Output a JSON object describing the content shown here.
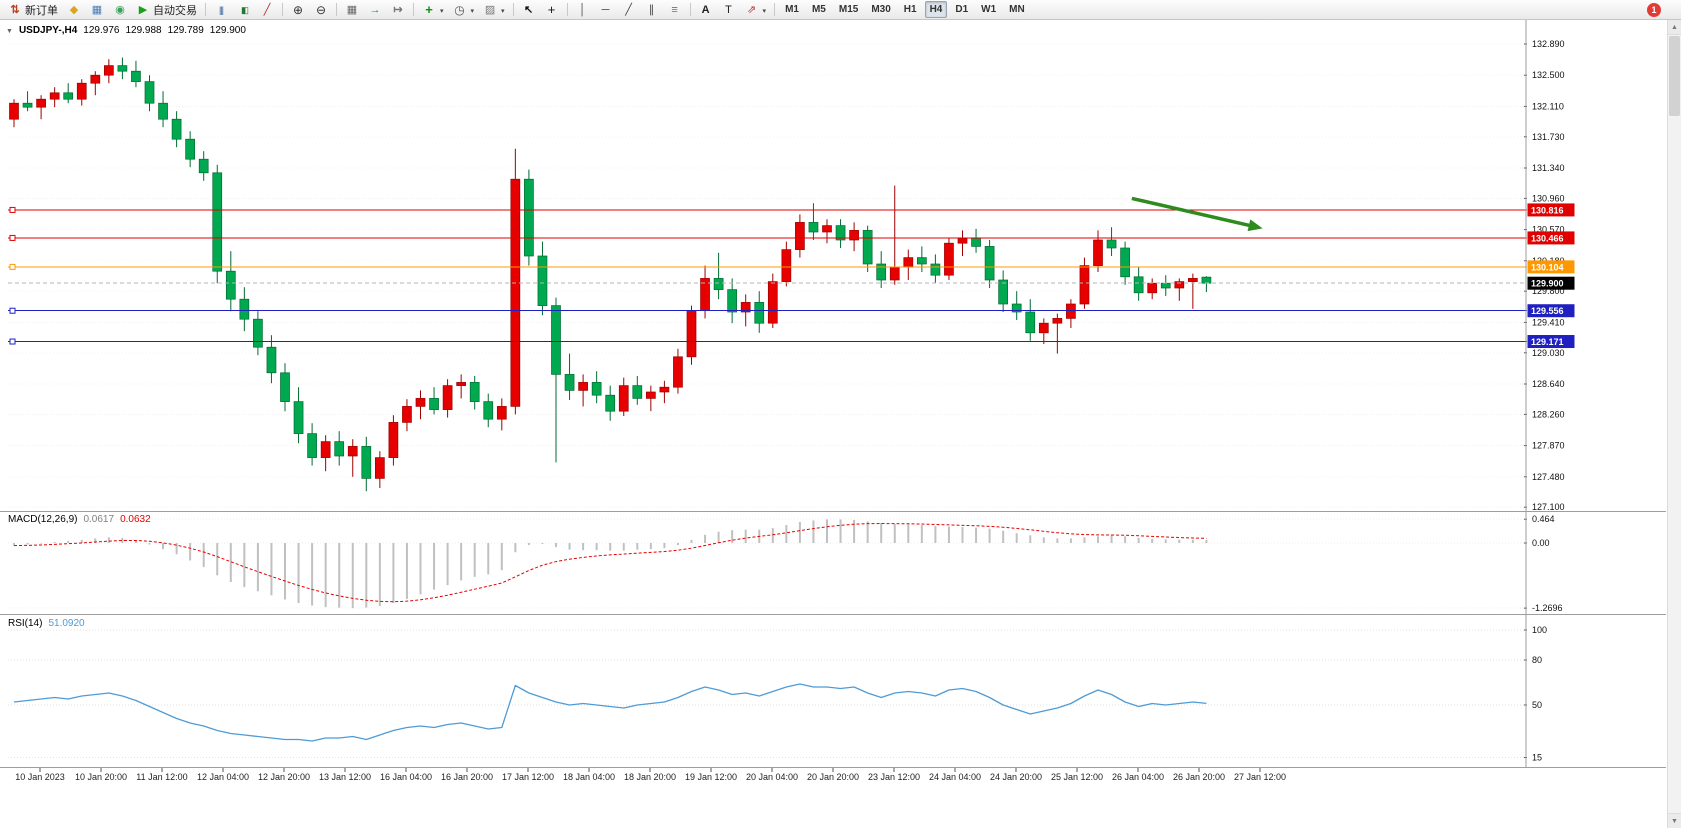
{
  "toolbar": {
    "items": [
      {
        "name": "new-order-button",
        "icon": "new-order",
        "label": "新订单"
      },
      {
        "name": "profiles-button",
        "icon": "profiles"
      },
      {
        "name": "data-window-button",
        "icon": "data-window"
      },
      {
        "name": "refresh-button",
        "icon": "refresh"
      },
      {
        "name": "autotrading-button",
        "icon": "autotrading",
        "label": "自动交易"
      },
      {
        "sep": 1
      },
      {
        "name": "bar-chart-button",
        "icon": "bar-chart"
      },
      {
        "name": "candlestick-chart-button",
        "icon": "candles"
      },
      {
        "name": "line-chart-button",
        "icon": "line-chart"
      },
      {
        "sep": 1
      },
      {
        "name": "zoom-in-button",
        "icon": "zoom-in"
      },
      {
        "name": "zoom-out-button",
        "icon": "zoom-out"
      },
      {
        "sep": 1
      },
      {
        "name": "tile-windows-button",
        "icon": "tile"
      },
      {
        "name": "auto-scroll-button",
        "icon": "autoscroll"
      },
      {
        "name": "chart-shift-button",
        "icon": "shift"
      },
      {
        "sep": 1
      },
      {
        "name": "indicators-button",
        "icon": "indicators",
        "caret": 1
      },
      {
        "name": "periods-button",
        "icon": "periods",
        "caret": 1
      },
      {
        "name": "templates-button",
        "icon": "template",
        "caret": 1
      },
      {
        "sep": 1
      },
      {
        "name": "cursor-button",
        "icon": "cursor"
      },
      {
        "name": "crosshair-button",
        "icon": "crosshair"
      },
      {
        "sep": 1
      },
      {
        "name": "vertical-line-button",
        "icon": "vline"
      },
      {
        "name": "horizontal-line-button",
        "icon": "hline"
      },
      {
        "name": "trendline-button",
        "icon": "trend"
      },
      {
        "name": "channel-button",
        "icon": "channel"
      },
      {
        "name": "fibonacci-button",
        "icon": "fibo"
      },
      {
        "sep": 1
      },
      {
        "name": "text-button",
        "icon": "text"
      },
      {
        "name": "text-label-button",
        "icon": "label"
      },
      {
        "name": "arrows-button",
        "icon": "arrows",
        "caret": 1
      },
      {
        "sep": 1
      }
    ],
    "timeframes": [
      "M1",
      "M5",
      "M15",
      "M30",
      "H1",
      "H4",
      "D1",
      "W1",
      "MN"
    ],
    "active_timeframe": "H4",
    "notification_count": "1"
  },
  "chart": {
    "title": {
      "symbol": "USDJPY-,H4",
      "open": "129.976",
      "high": "129.988",
      "low": "129.789",
      "close": "129.900"
    },
    "price_axis_labels": [
      "132.890",
      "132.500",
      "132.110",
      "131.730",
      "131.340",
      "130.960",
      "130.570",
      "130.180",
      "129.800",
      "129.410",
      "129.030",
      "128.640",
      "128.260",
      "127.870",
      "127.480",
      "127.100"
    ],
    "date_labels": [
      "10 Jan 2023",
      "10 Jan 20:00",
      "11 Jan 12:00",
      "12 Jan 04:00",
      "12 Jan 20:00",
      "13 Jan 12:00",
      "16 Jan 04:00",
      "16 Jan 20:00",
      "17 Jan 12:00",
      "18 Jan 04:00",
      "18 Jan 20:00",
      "19 Jan 12:00",
      "20 Jan 04:00",
      "20 Jan 20:00",
      "23 Jan 12:00",
      "24 Jan 04:00",
      "24 Jan 20:00",
      "25 Jan 12:00",
      "26 Jan 04:00",
      "26 Jan 20:00",
      "27 Jan 12:00"
    ],
    "levels": [
      {
        "label": "130.816",
        "price": 130.816,
        "color": "#e00000",
        "kind": "line"
      },
      {
        "label": "130.466",
        "price": 130.466,
        "color": "#e00000",
        "kind": "line"
      },
      {
        "label": "130.104",
        "price": 130.104,
        "color": "#ff9800",
        "kind": "line"
      },
      {
        "label": "129.900",
        "price": 129.9,
        "color": "#000000",
        "kind": "current"
      },
      {
        "label": "129.556",
        "price": 129.556,
        "color": "#2020c0",
        "kind": "line"
      },
      {
        "label": "129.171",
        "price": 129.171,
        "color": "#2020c0",
        "kind": "line"
      }
    ],
    "annotation": {
      "type": "arrow",
      "from_index": 82.5,
      "from_price": 130.96,
      "to_index": 91.5,
      "to_price": 130.61,
      "color": "#2e8b1e"
    }
  },
  "chart_data": {
    "type": "candlestick",
    "symbol": "USDJPY-",
    "timeframe": "H4",
    "ylim": [
      127.1,
      132.89
    ],
    "candles": [
      [
        131.95,
        132.2,
        131.85,
        132.15
      ],
      [
        132.15,
        132.3,
        132.05,
        132.1
      ],
      [
        132.1,
        132.25,
        131.95,
        132.2
      ],
      [
        132.2,
        132.35,
        132.1,
        132.28
      ],
      [
        132.28,
        132.4,
        132.15,
        132.2
      ],
      [
        132.2,
        132.45,
        132.12,
        132.4
      ],
      [
        132.4,
        132.55,
        132.25,
        132.5
      ],
      [
        132.5,
        132.7,
        132.4,
        132.62
      ],
      [
        132.62,
        132.72,
        132.45,
        132.55
      ],
      [
        132.55,
        132.68,
        132.35,
        132.42
      ],
      [
        132.42,
        132.5,
        132.05,
        132.15
      ],
      [
        132.15,
        132.3,
        131.85,
        131.95
      ],
      [
        131.95,
        132.05,
        131.6,
        131.7
      ],
      [
        131.7,
        131.8,
        131.35,
        131.45
      ],
      [
        131.45,
        131.55,
        131.18,
        131.28
      ],
      [
        131.28,
        131.38,
        129.9,
        130.05
      ],
      [
        130.05,
        130.3,
        129.55,
        129.7
      ],
      [
        129.7,
        129.85,
        129.3,
        129.45
      ],
      [
        129.45,
        129.55,
        129.0,
        129.1
      ],
      [
        129.1,
        129.25,
        128.65,
        128.78
      ],
      [
        128.78,
        128.9,
        128.3,
        128.42
      ],
      [
        128.42,
        128.6,
        127.9,
        128.02
      ],
      [
        128.02,
        128.15,
        127.62,
        127.72
      ],
      [
        127.72,
        128.0,
        127.55,
        127.92
      ],
      [
        127.92,
        128.05,
        127.62,
        127.74
      ],
      [
        127.74,
        127.95,
        127.48,
        127.86
      ],
      [
        127.86,
        127.98,
        127.3,
        127.46
      ],
      [
        127.46,
        127.8,
        127.34,
        127.72
      ],
      [
        127.72,
        128.25,
        127.62,
        128.16
      ],
      [
        128.16,
        128.45,
        128.05,
        128.36
      ],
      [
        128.36,
        128.56,
        128.2,
        128.46
      ],
      [
        128.46,
        128.6,
        128.26,
        128.32
      ],
      [
        128.32,
        128.7,
        128.22,
        128.62
      ],
      [
        128.62,
        128.76,
        128.46,
        128.66
      ],
      [
        128.66,
        128.74,
        128.32,
        128.42
      ],
      [
        128.42,
        128.52,
        128.1,
        128.2
      ],
      [
        128.2,
        128.46,
        128.06,
        128.36
      ],
      [
        128.36,
        131.58,
        128.26,
        131.2
      ],
      [
        131.2,
        131.32,
        130.12,
        130.24
      ],
      [
        130.24,
        130.42,
        129.5,
        129.62
      ],
      [
        129.62,
        129.72,
        127.66,
        128.76
      ],
      [
        128.76,
        129.02,
        128.44,
        128.56
      ],
      [
        128.56,
        128.76,
        128.36,
        128.66
      ],
      [
        128.66,
        128.8,
        128.4,
        128.5
      ],
      [
        128.5,
        128.62,
        128.18,
        128.3
      ],
      [
        128.3,
        128.72,
        128.24,
        128.62
      ],
      [
        128.62,
        128.74,
        128.38,
        128.46
      ],
      [
        128.46,
        128.62,
        128.3,
        128.54
      ],
      [
        128.54,
        128.68,
        128.4,
        128.6
      ],
      [
        128.6,
        129.08,
        128.52,
        128.98
      ],
      [
        128.98,
        129.62,
        128.88,
        129.56
      ],
      [
        129.56,
        130.12,
        129.46,
        129.96
      ],
      [
        129.96,
        130.28,
        129.7,
        129.82
      ],
      [
        129.82,
        129.96,
        129.4,
        129.54
      ],
      [
        129.54,
        129.76,
        129.36,
        129.66
      ],
      [
        129.66,
        129.8,
        129.28,
        129.4
      ],
      [
        129.4,
        130.02,
        129.34,
        129.92
      ],
      [
        129.92,
        130.42,
        129.86,
        130.32
      ],
      [
        130.32,
        130.76,
        130.22,
        130.66
      ],
      [
        130.66,
        130.9,
        130.44,
        130.54
      ],
      [
        130.54,
        130.7,
        130.4,
        130.62
      ],
      [
        130.62,
        130.7,
        130.34,
        130.44
      ],
      [
        130.44,
        130.66,
        130.3,
        130.56
      ],
      [
        130.56,
        130.62,
        130.04,
        130.14
      ],
      [
        130.14,
        130.3,
        129.84,
        129.94
      ],
      [
        129.94,
        131.12,
        129.88,
        130.1
      ],
      [
        130.1,
        130.32,
        129.94,
        130.22
      ],
      [
        130.22,
        130.36,
        130.04,
        130.14
      ],
      [
        130.14,
        130.26,
        129.9,
        130.0
      ],
      [
        130.0,
        130.46,
        129.94,
        130.4
      ],
      [
        130.4,
        130.56,
        130.24,
        130.46
      ],
      [
        130.46,
        130.58,
        130.28,
        130.36
      ],
      [
        130.36,
        130.44,
        129.84,
        129.94
      ],
      [
        129.94,
        130.06,
        129.54,
        129.64
      ],
      [
        129.64,
        129.8,
        129.44,
        129.54
      ],
      [
        129.54,
        129.7,
        129.18,
        129.28
      ],
      [
        129.28,
        129.46,
        129.14,
        129.4
      ],
      [
        129.4,
        129.52,
        129.02,
        129.46
      ],
      [
        129.46,
        129.7,
        129.34,
        129.64
      ],
      [
        129.64,
        130.22,
        129.58,
        130.12
      ],
      [
        130.12,
        130.56,
        130.04,
        130.44
      ],
      [
        130.44,
        130.6,
        130.24,
        130.34
      ],
      [
        130.34,
        130.42,
        129.88,
        129.98
      ],
      [
        129.98,
        130.1,
        129.68,
        129.78
      ],
      [
        129.78,
        129.96,
        129.7,
        129.9
      ],
      [
        129.9,
        130.0,
        129.74,
        129.84
      ],
      [
        129.84,
        129.96,
        129.68,
        129.92
      ],
      [
        129.92,
        130.02,
        129.58,
        129.96
      ],
      [
        129.976,
        129.988,
        129.789,
        129.9
      ]
    ]
  },
  "macd": {
    "name": "MACD(12,26,9)",
    "value": "0.0617",
    "signal_value": "0.0632",
    "axis_labels": [
      "0.464",
      "0.00",
      "-1.2696"
    ],
    "values": [
      -0.05,
      -0.03,
      -0.01,
      0.02,
      0.04,
      0.06,
      0.09,
      0.11,
      0.1,
      0.05,
      -0.03,
      -0.12,
      -0.22,
      -0.34,
      -0.47,
      -0.63,
      -0.76,
      -0.86,
      -0.94,
      -1.02,
      -1.1,
      -1.17,
      -1.22,
      -1.25,
      -1.26,
      -1.27,
      -1.26,
      -1.23,
      -1.17,
      -1.09,
      -1.0,
      -0.91,
      -0.82,
      -0.73,
      -0.66,
      -0.61,
      -0.53,
      -0.18,
      -0.04,
      -0.02,
      -0.08,
      -0.13,
      -0.14,
      -0.14,
      -0.15,
      -0.15,
      -0.13,
      -0.12,
      -0.1,
      -0.04,
      0.06,
      0.16,
      0.22,
      0.25,
      0.26,
      0.26,
      0.29,
      0.35,
      0.41,
      0.44,
      0.46,
      0.46,
      0.45,
      0.42,
      0.39,
      0.37,
      0.36,
      0.35,
      0.33,
      0.32,
      0.31,
      0.3,
      0.28,
      0.24,
      0.19,
      0.15,
      0.11,
      0.09,
      0.09,
      0.11,
      0.13,
      0.15,
      0.13,
      0.1,
      0.08,
      0.07,
      0.065,
      0.063,
      0.0617
    ]
  },
  "rsi": {
    "name": "RSI(14)",
    "value": "51.0920",
    "axis_labels": [
      "100",
      "80",
      "50",
      "15"
    ],
    "values": [
      52,
      53,
      54,
      55,
      54,
      56,
      57,
      58,
      56,
      53,
      49,
      45,
      41,
      38,
      36,
      33,
      31,
      30,
      29,
      28,
      27,
      27,
      26,
      28,
      28,
      29,
      27,
      30,
      33,
      35,
      36,
      35,
      37,
      38,
      36,
      34,
      35,
      63,
      58,
      55,
      52,
      50,
      51,
      50,
      49,
      48,
      50,
      51,
      52,
      55,
      59,
      62,
      60,
      57,
      58,
      56,
      59,
      62,
      64,
      62,
      62,
      61,
      62,
      58,
      55,
      58,
      59,
      58,
      56,
      60,
      61,
      59,
      55,
      50,
      47,
      44,
      46,
      48,
      51,
      56,
      60,
      57,
      52,
      49,
      51,
      50,
      51,
      52,
      51.09
    ]
  }
}
